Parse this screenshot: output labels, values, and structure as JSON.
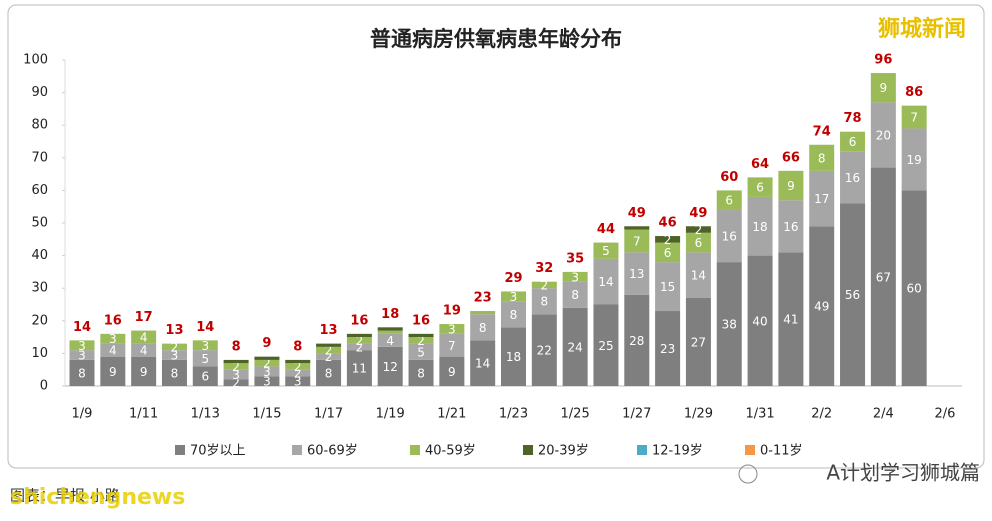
{
  "chart_data": {
    "type": "stacked-bar",
    "title": "普通病房供氧病患年龄分布",
    "categories": [
      "1/9",
      null,
      "1/11",
      null,
      "1/13",
      null,
      "1/15",
      null,
      "1/17",
      null,
      "1/19",
      null,
      "1/21",
      null,
      "1/23",
      null,
      "1/25",
      null,
      "1/27",
      null,
      "1/29",
      null,
      "1/31",
      null,
      "2/2",
      null,
      "2/4",
      null,
      "2/6"
    ],
    "series": [
      {
        "name": "70岁以上",
        "color": "#7f7f7f",
        "values": [
          8,
          9,
          9,
          8,
          6,
          2,
          3,
          3,
          8,
          11,
          12,
          8,
          9,
          14,
          18,
          22,
          24,
          25,
          28,
          23,
          27,
          38,
          40,
          41,
          49,
          56,
          67,
          60,
          null
        ]
      },
      {
        "name": "60-69岁",
        "color": "#a6a6a6",
        "values": [
          3,
          4,
          4,
          3,
          5,
          3,
          3,
          2,
          2,
          2,
          4,
          5,
          7,
          8,
          8,
          8,
          8,
          14,
          13,
          15,
          14,
          16,
          18,
          16,
          17,
          16,
          20,
          19,
          null
        ]
      },
      {
        "name": "40-59岁",
        "color": "#9bbb59",
        "values": [
          3,
          3,
          4,
          2,
          3,
          2,
          2,
          2,
          2,
          2,
          1,
          2,
          3,
          1,
          3,
          2,
          3,
          5,
          7,
          6,
          6,
          6,
          6,
          9,
          8,
          6,
          9,
          7,
          null
        ]
      },
      {
        "name": "20-39岁",
        "color": "#4f6228",
        "values": [
          0,
          0,
          0,
          0,
          0,
          1,
          1,
          1,
          1,
          1,
          1,
          1,
          0,
          0,
          0,
          0,
          0,
          0,
          1,
          2,
          2,
          0,
          0,
          0,
          0,
          0,
          0,
          0,
          null
        ]
      },
      {
        "name": "12-19岁",
        "color": "#4bacc6",
        "values": [
          0,
          0,
          0,
          0,
          0,
          0,
          0,
          0,
          0,
          0,
          0,
          0,
          0,
          0,
          0,
          0,
          0,
          0,
          0,
          0,
          0,
          0,
          0,
          0,
          0,
          0,
          0,
          0,
          null
        ]
      },
      {
        "name": "0-11岁",
        "color": "#f79646",
        "values": [
          0,
          0,
          0,
          0,
          0,
          0,
          0,
          0,
          0,
          0,
          0,
          0,
          0,
          0,
          0,
          0,
          0,
          0,
          0,
          0,
          0,
          0,
          0,
          0,
          0,
          0,
          0,
          0,
          null
        ]
      }
    ],
    "totals": [
      14,
      16,
      17,
      13,
      14,
      8,
      9,
      8,
      13,
      16,
      18,
      16,
      19,
      23,
      29,
      32,
      35,
      44,
      49,
      46,
      49,
      60,
      64,
      66,
      74,
      78,
      96,
      86,
      null
    ],
    "ylim": [
      0,
      100
    ],
    "yticks": [
      0,
      10,
      20,
      30,
      40,
      50,
      60,
      70,
      80,
      90,
      100
    ],
    "legend": "bottom"
  },
  "watermarks": {
    "top_right": "狮城新闻",
    "bottom_left": "shichengnews",
    "credit": "图表：早报 小路",
    "bottom_right": "A计划学习狮城篇"
  }
}
